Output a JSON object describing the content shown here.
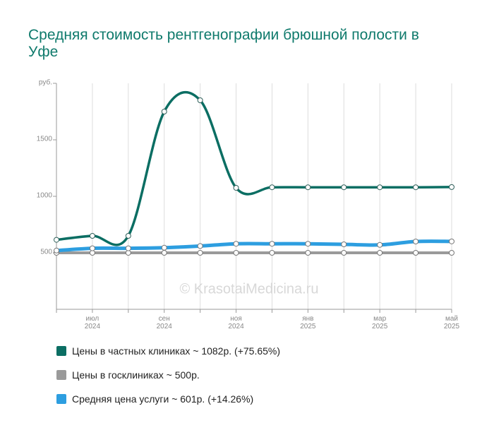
{
  "chart_data": {
    "type": "line",
    "title": "Средняя стоимость рентгенографии брюшной полости в Уфе",
    "watermark": "© KrasotaiMedicina.ru",
    "categories": [
      null,
      "июл\n2024",
      null,
      "сен\n2024",
      null,
      "ноя\n2024",
      null,
      "янв\n2025",
      null,
      "мар\n2025",
      null,
      "май\n2025"
    ],
    "ylim": [
      0,
      2000
    ],
    "yticks": [
      500,
      1000,
      1500,
      {
        "value": 2000,
        "label": "руб."
      }
    ],
    "grid": true,
    "series": [
      {
        "name": "Цены в частных клиниках ~ 1082р. (+75.65%)",
        "color": "#0b6e63",
        "values": [
          615,
          650,
          650,
          1750,
          1850,
          1075,
          1080,
          1080,
          1080,
          1080,
          1080,
          1082
        ]
      },
      {
        "name": "Цены в госклиниках ~ 500р.",
        "color": "#9a9a9a",
        "values": [
          500,
          500,
          500,
          500,
          500,
          500,
          500,
          500,
          500,
          500,
          500,
          500
        ]
      },
      {
        "name": "Средняя цена услуги ~ 601р. (+14.26%)",
        "color": "#2d9ee0",
        "values": [
          520,
          540,
          540,
          545,
          560,
          580,
          580,
          580,
          575,
          570,
          600,
          601
        ]
      }
    ]
  }
}
